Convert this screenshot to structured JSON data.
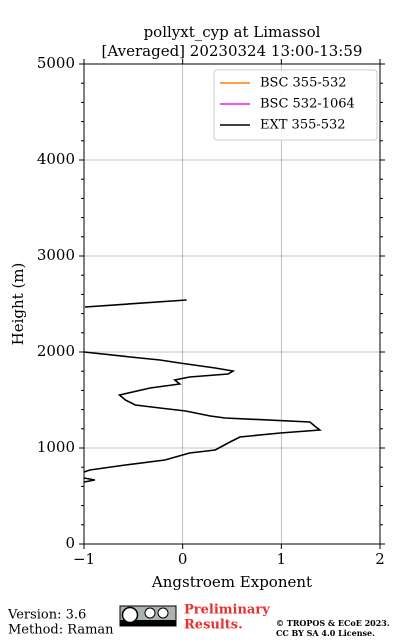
{
  "chart_data": {
    "type": "line",
    "orientation": "vertical-profile",
    "title": [
      "pollyxt_cyp at Limassol",
      "[Averaged] 20230324 13:00-13:59"
    ],
    "xlabel": "Angstroem Exponent",
    "ylabel": "Height (m)",
    "xlim": [
      -1,
      2
    ],
    "xticks": [
      {
        "value": -1,
        "label": "−1"
      },
      0,
      1,
      2
    ],
    "ylim": [
      0,
      5000
    ],
    "yticks": [
      0,
      1000,
      2000,
      3000,
      4000,
      5000
    ],
    "yminorticks": [
      200,
      400,
      600,
      800,
      1200,
      1400,
      1600,
      1800,
      2200,
      2400,
      2600,
      2800,
      3200,
      3400,
      3600,
      3800,
      4200,
      4400,
      4600,
      4800
    ],
    "grid": true,
    "legend": "upper right",
    "y": [
      2542,
      2469,
      2250,
      2000,
      1948,
      1917,
      1885,
      1833,
      1802,
      1771,
      1740,
      1708,
      1667,
      1625,
      1552,
      1500,
      1448,
      1417,
      1385,
      1333,
      1312,
      1271,
      1219,
      1187,
      1156,
      1115,
      1062,
      979,
      948,
      875,
      823,
      771,
      750,
      710,
      688,
      667,
      646
    ],
    "series": [
      {
        "name": "BSC 355-532",
        "color": "#ff7f0e",
        "values": [
          null,
          null,
          null,
          null,
          null,
          null,
          null,
          null,
          null,
          null,
          null,
          null,
          null,
          null,
          null,
          null,
          null,
          null,
          null,
          null,
          null,
          null,
          null,
          null,
          null,
          null,
          null,
          null,
          null,
          null,
          null,
          null,
          null,
          null,
          null,
          null,
          null
        ]
      },
      {
        "name": "BSC 532-1064",
        "color": "#e81ee8",
        "values": [
          null,
          null,
          null,
          null,
          null,
          null,
          null,
          null,
          null,
          null,
          null,
          null,
          null,
          null,
          null,
          null,
          null,
          null,
          null,
          null,
          null,
          null,
          null,
          null,
          null,
          null,
          null,
          null,
          null,
          null,
          null,
          null,
          null,
          null,
          null,
          null,
          null
        ]
      },
      {
        "name": "EXT 355-532",
        "color": "#000000",
        "values": [
          0.04,
          -0.99,
          null,
          -1.0,
          -0.53,
          -0.23,
          -0.03,
          0.33,
          0.51,
          0.46,
          0.07,
          -0.08,
          -0.03,
          -0.33,
          -0.64,
          -0.58,
          -0.48,
          -0.23,
          0.03,
          0.28,
          0.43,
          1.29,
          1.35,
          1.39,
          0.99,
          0.58,
          0.48,
          0.33,
          0.07,
          -0.18,
          -0.58,
          -0.94,
          -1.0,
          null,
          -1.0,
          -0.89,
          -1.0
        ]
      }
    ]
  },
  "footer": {
    "version": "Version: 3.6",
    "method": "Method: Raman",
    "preliminary": [
      "Preliminary",
      "Results."
    ],
    "copyright": [
      "© TROPOS & ECoE 2023.",
      "CC BY SA 4.0 License."
    ]
  }
}
